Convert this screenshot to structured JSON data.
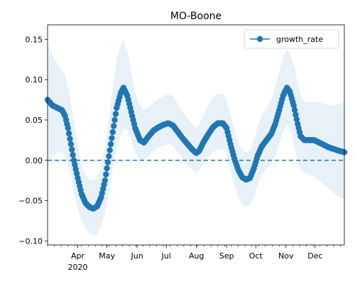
{
  "chart_data": {
    "type": "line",
    "title": "MO-Boone",
    "xlabel": "",
    "ylabel": "",
    "x_range": [
      "2020-03-01",
      "2020-12-31"
    ],
    "ylim": [
      -0.105,
      0.168
    ],
    "x_ticks": [
      {
        "date": "2020-04-01",
        "label": "Apr"
      },
      {
        "date": "2020-05-01",
        "label": "May"
      },
      {
        "date": "2020-06-01",
        "label": "Jun"
      },
      {
        "date": "2020-07-01",
        "label": "Jul"
      },
      {
        "date": "2020-08-01",
        "label": "Aug"
      },
      {
        "date": "2020-09-01",
        "label": "Sep"
      },
      {
        "date": "2020-10-01",
        "label": "Oct"
      },
      {
        "date": "2020-11-01",
        "label": "Nov"
      },
      {
        "date": "2020-12-01",
        "label": "Dec"
      }
    ],
    "year_label": "2020",
    "y_ticks": [
      -0.1,
      -0.05,
      0.0,
      0.05,
      0.1,
      0.15
    ],
    "y_tick_labels": [
      "−0.10",
      "−0.05",
      "0.00",
      "0.05",
      "0.10",
      "0.15"
    ],
    "reference_line": {
      "y": 0.0,
      "style": "dashed"
    },
    "grid": false,
    "legend": {
      "position": "top-right",
      "entries": [
        "growth_rate"
      ]
    },
    "series": [
      {
        "name": "growth_rate",
        "color": "#1f77b4",
        "marker": "circle",
        "points": [
          {
            "x": "2020-03-01",
            "y": 0.075,
            "lo": -0.01,
            "hi": 0.145
          },
          {
            "x": "2020-03-06",
            "y": 0.068,
            "lo": 0.005,
            "hi": 0.13
          },
          {
            "x": "2020-03-11",
            "y": 0.065,
            "lo": 0.01,
            "hi": 0.12
          },
          {
            "x": "2020-03-16",
            "y": 0.062,
            "lo": 0.01,
            "hi": 0.112
          },
          {
            "x": "2020-03-19",
            "y": 0.055,
            "lo": 0.005,
            "hi": 0.105
          },
          {
            "x": "2020-03-22",
            "y": 0.04,
            "lo": -0.005,
            "hi": 0.09
          },
          {
            "x": "2020-03-25",
            "y": 0.02,
            "lo": -0.02,
            "hi": 0.07
          },
          {
            "x": "2020-03-28",
            "y": 0.0,
            "lo": -0.04,
            "hi": 0.05
          },
          {
            "x": "2020-04-01",
            "y": -0.022,
            "lo": -0.06,
            "hi": 0.02
          },
          {
            "x": "2020-04-05",
            "y": -0.042,
            "lo": -0.075,
            "hi": -0.005
          },
          {
            "x": "2020-04-09",
            "y": -0.053,
            "lo": -0.085,
            "hi": -0.018
          },
          {
            "x": "2020-04-13",
            "y": -0.058,
            "lo": -0.09,
            "hi": -0.024
          },
          {
            "x": "2020-04-17",
            "y": -0.06,
            "lo": -0.093,
            "hi": -0.025
          },
          {
            "x": "2020-04-21",
            "y": -0.057,
            "lo": -0.091,
            "hi": -0.022
          },
          {
            "x": "2020-04-25",
            "y": -0.046,
            "lo": -0.082,
            "hi": -0.008
          },
          {
            "x": "2020-04-29",
            "y": -0.025,
            "lo": -0.065,
            "hi": 0.015
          },
          {
            "x": "2020-05-03",
            "y": 0.005,
            "lo": -0.04,
            "hi": 0.05
          },
          {
            "x": "2020-05-07",
            "y": 0.035,
            "lo": -0.01,
            "hi": 0.09
          },
          {
            "x": "2020-05-11",
            "y": 0.065,
            "lo": 0.015,
            "hi": 0.125
          },
          {
            "x": "2020-05-15",
            "y": 0.083,
            "lo": 0.03,
            "hi": 0.143
          },
          {
            "x": "2020-05-18",
            "y": 0.09,
            "lo": 0.04,
            "hi": 0.15
          },
          {
            "x": "2020-05-22",
            "y": 0.08,
            "lo": 0.038,
            "hi": 0.135
          },
          {
            "x": "2020-05-26",
            "y": 0.06,
            "lo": 0.025,
            "hi": 0.11
          },
          {
            "x": "2020-05-30",
            "y": 0.04,
            "lo": 0.01,
            "hi": 0.085
          },
          {
            "x": "2020-06-04",
            "y": 0.025,
            "lo": 0.0,
            "hi": 0.068
          },
          {
            "x": "2020-06-08",
            "y": 0.022,
            "lo": 0.0,
            "hi": 0.062
          },
          {
            "x": "2020-06-13",
            "y": 0.03,
            "lo": 0.005,
            "hi": 0.066
          },
          {
            "x": "2020-06-18",
            "y": 0.037,
            "lo": 0.012,
            "hi": 0.072
          },
          {
            "x": "2020-06-23",
            "y": 0.041,
            "lo": 0.016,
            "hi": 0.076
          },
          {
            "x": "2020-06-28",
            "y": 0.044,
            "lo": 0.018,
            "hi": 0.08
          },
          {
            "x": "2020-07-03",
            "y": 0.046,
            "lo": 0.02,
            "hi": 0.082
          },
          {
            "x": "2020-07-08",
            "y": 0.043,
            "lo": 0.018,
            "hi": 0.079
          },
          {
            "x": "2020-07-13",
            "y": 0.035,
            "lo": 0.01,
            "hi": 0.07
          },
          {
            "x": "2020-07-18",
            "y": 0.027,
            "lo": 0.002,
            "hi": 0.06
          },
          {
            "x": "2020-07-23",
            "y": 0.02,
            "lo": -0.005,
            "hi": 0.052
          },
          {
            "x": "2020-07-28",
            "y": 0.013,
            "lo": -0.012,
            "hi": 0.045
          },
          {
            "x": "2020-08-01",
            "y": 0.009,
            "lo": -0.016,
            "hi": 0.04
          },
          {
            "x": "2020-08-04",
            "y": 0.012,
            "lo": -0.012,
            "hi": 0.045
          },
          {
            "x": "2020-08-08",
            "y": 0.022,
            "lo": -0.005,
            "hi": 0.055
          },
          {
            "x": "2020-08-13",
            "y": 0.032,
            "lo": 0.003,
            "hi": 0.068
          },
          {
            "x": "2020-08-18",
            "y": 0.041,
            "lo": 0.01,
            "hi": 0.078
          },
          {
            "x": "2020-08-23",
            "y": 0.046,
            "lo": 0.014,
            "hi": 0.082
          },
          {
            "x": "2020-08-28",
            "y": 0.046,
            "lo": 0.014,
            "hi": 0.082
          },
          {
            "x": "2020-09-01",
            "y": 0.04,
            "lo": 0.008,
            "hi": 0.075
          },
          {
            "x": "2020-09-05",
            "y": 0.02,
            "lo": -0.012,
            "hi": 0.056
          },
          {
            "x": "2020-09-09",
            "y": 0.002,
            "lo": -0.03,
            "hi": 0.038
          },
          {
            "x": "2020-09-13",
            "y": -0.012,
            "lo": -0.045,
            "hi": 0.022
          },
          {
            "x": "2020-09-17",
            "y": -0.021,
            "lo": -0.055,
            "hi": 0.012
          },
          {
            "x": "2020-09-21",
            "y": -0.024,
            "lo": -0.058,
            "hi": 0.01
          },
          {
            "x": "2020-09-25",
            "y": -0.022,
            "lo": -0.056,
            "hi": 0.012
          },
          {
            "x": "2020-09-29",
            "y": -0.01,
            "lo": -0.045,
            "hi": 0.025
          },
          {
            "x": "2020-10-03",
            "y": 0.006,
            "lo": -0.03,
            "hi": 0.042
          },
          {
            "x": "2020-10-07",
            "y": 0.017,
            "lo": -0.018,
            "hi": 0.055
          },
          {
            "x": "2020-10-12",
            "y": 0.025,
            "lo": -0.01,
            "hi": 0.065
          },
          {
            "x": "2020-10-17",
            "y": 0.033,
            "lo": -0.005,
            "hi": 0.075
          },
          {
            "x": "2020-10-21",
            "y": 0.045,
            "lo": 0.005,
            "hi": 0.09
          },
          {
            "x": "2020-10-25",
            "y": 0.062,
            "lo": 0.02,
            "hi": 0.11
          },
          {
            "x": "2020-10-29",
            "y": 0.08,
            "lo": 0.035,
            "hi": 0.128
          },
          {
            "x": "2020-11-02",
            "y": 0.09,
            "lo": 0.045,
            "hi": 0.138
          },
          {
            "x": "2020-11-05",
            "y": 0.085,
            "lo": 0.04,
            "hi": 0.132
          },
          {
            "x": "2020-11-09",
            "y": 0.068,
            "lo": 0.02,
            "hi": 0.118
          },
          {
            "x": "2020-11-13",
            "y": 0.045,
            "lo": -0.002,
            "hi": 0.098
          },
          {
            "x": "2020-11-16",
            "y": 0.03,
            "lo": -0.012,
            "hi": 0.08
          },
          {
            "x": "2020-11-20",
            "y": 0.025,
            "lo": -0.015,
            "hi": 0.072
          },
          {
            "x": "2020-11-25",
            "y": 0.025,
            "lo": -0.018,
            "hi": 0.072
          },
          {
            "x": "2020-11-30",
            "y": 0.025,
            "lo": -0.02,
            "hi": 0.073
          },
          {
            "x": "2020-12-05",
            "y": 0.022,
            "lo": -0.025,
            "hi": 0.072
          },
          {
            "x": "2020-12-10",
            "y": 0.019,
            "lo": -0.03,
            "hi": 0.07
          },
          {
            "x": "2020-12-15",
            "y": 0.016,
            "lo": -0.035,
            "hi": 0.068
          },
          {
            "x": "2020-12-20",
            "y": 0.014,
            "lo": -0.04,
            "hi": 0.068
          },
          {
            "x": "2020-12-25",
            "y": 0.012,
            "lo": -0.045,
            "hi": 0.07
          },
          {
            "x": "2020-12-31",
            "y": 0.01,
            "lo": -0.048,
            "hi": 0.072
          }
        ]
      }
    ]
  }
}
